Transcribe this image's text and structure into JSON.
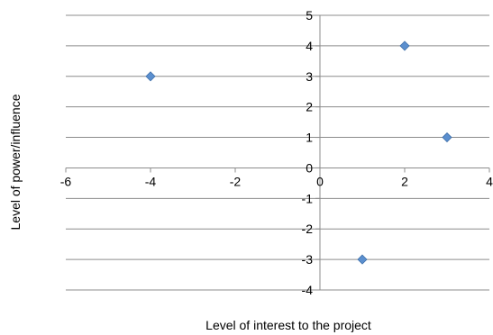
{
  "chart_data": {
    "type": "scatter",
    "xlabel": "Level of interest to the project",
    "ylabel": "Level of power/influence",
    "xlim": [
      -6,
      4
    ],
    "ylim": [
      -4,
      5
    ],
    "x_ticks": [
      -6,
      -4,
      -2,
      0,
      2,
      4
    ],
    "y_ticks": [
      -4,
      -3,
      -2,
      -1,
      0,
      1,
      2,
      3,
      4,
      5
    ],
    "grid": "horizontal",
    "legend": "none",
    "marker": "diamond",
    "marker_color": "#5b8fcf",
    "points": [
      {
        "x": -4,
        "y": 3
      },
      {
        "x": 2,
        "y": 4
      },
      {
        "x": 3,
        "y": 1
      },
      {
        "x": 1,
        "y": -3
      }
    ]
  }
}
